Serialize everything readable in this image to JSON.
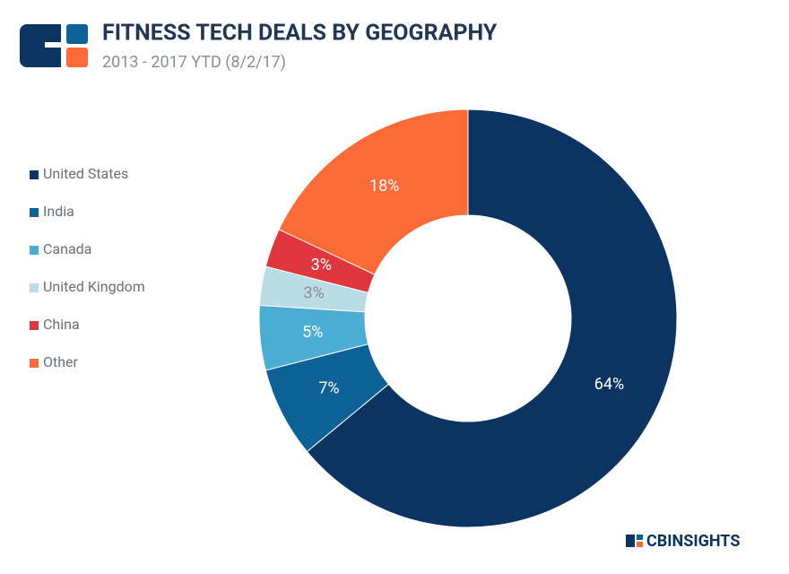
{
  "chart_data": {
    "type": "donut",
    "title": "FITNESS TECH DEALS BY GEOGRAPHY",
    "subtitle": "2013 - 2017 YTD (8/2/17)",
    "categories": [
      "United States",
      "India",
      "Canada",
      "United Kingdom",
      "China",
      "Other"
    ],
    "values": [
      64,
      7,
      5,
      3,
      3,
      18
    ],
    "value_labels": [
      "64%",
      "7%",
      "5%",
      "3%",
      "3%",
      "18%"
    ],
    "colors": [
      "#0b3463",
      "#0c6196",
      "#4badd3",
      "#b9dce6",
      "#e0373f",
      "#fc6a35"
    ],
    "label_colors": [
      "#ffffff",
      "#ffffff",
      "#ffffff",
      "#8a8f94",
      "#ffffff",
      "#ffffff"
    ],
    "legend": "left",
    "brand": "CBINSIGHTS"
  }
}
